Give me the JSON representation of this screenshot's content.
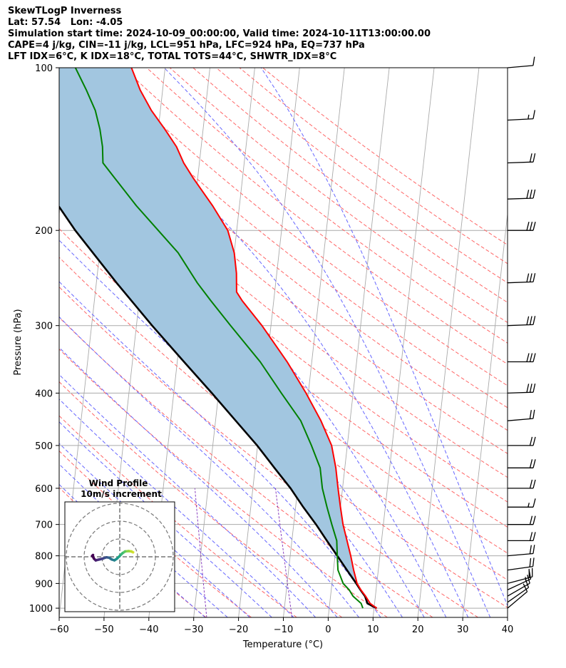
{
  "header": {
    "title": "SkewTLogP Inverness",
    "location": "Lat: 57.54   Lon: -4.05",
    "times": "Simulation start time: 2024-10-09_00:00:00, Valid time: 2024-10-11T13:00:00.00",
    "params1": "CAPE=4 j/kg, CIN=-11 j/kg, LCL=951 hPa, LFC=924 hPa, EQ=737 hPa",
    "params2": "LFT IDX=6$^\\circ$C, K IDX=18$^\\circ$C, TOTAL TOTS=44$^\\circ$C, SHWTR_IDX=8$^\\circ$C"
  },
  "colors": {
    "temperature": "#ff0000",
    "dewpoint": "#008000",
    "parcel": "#000000",
    "cape_fill": "#a2c6e0",
    "dry_adiabat": "#ff6666",
    "moist_adiabat": "#6666ff",
    "mixing_ratio": "#8a3fbf",
    "isotherm": "#aaaaaa"
  },
  "chart_data": {
    "type": "line",
    "title": "",
    "xlabel": "Temperature ($^\\circ$C)",
    "ylabel": "Pressure (hPa)",
    "xlim": [
      -60,
      40
    ],
    "ylim": [
      1040,
      100
    ],
    "y_scale": "log",
    "grid": true,
    "x_ticks": [
      "−60",
      "−50",
      "−40",
      "−30",
      "−20",
      "−10",
      "0",
      "10",
      "20",
      "30",
      "40"
    ],
    "x_tick_values": [
      -60,
      -50,
      -40,
      -30,
      -20,
      -10,
      0,
      10,
      20,
      30,
      40
    ],
    "y_ticks": [
      "1000",
      "900",
      "800",
      "700",
      "600",
      "500",
      "400",
      "300",
      "200",
      "100"
    ],
    "y_tick_values": [
      1000,
      900,
      800,
      700,
      600,
      500,
      400,
      300,
      200,
      100
    ],
    "series": [
      {
        "key": "temperature",
        "pressure": [
          1000,
          980,
          950,
          925,
          900,
          850,
          800,
          750,
          700,
          650,
          600,
          550,
          500,
          450,
          400,
          350,
          300,
          270,
          260,
          240,
          220,
          200,
          180,
          160,
          150,
          140,
          130,
          120,
          110,
          100
        ],
        "temp": [
          10.6,
          9.0,
          7.8,
          6.6,
          5.6,
          4.5,
          3.5,
          2.3,
          1.0,
          0.0,
          -1.0,
          -2.0,
          -3.5,
          -6.5,
          -10.5,
          -15.5,
          -22.0,
          -27.0,
          -28.5,
          -29.0,
          -30.0,
          -32.0,
          -36.0,
          -41.0,
          -43.5,
          -45.5,
          -48.5,
          -52.0,
          -55.0,
          -57.5
        ]
      },
      {
        "key": "dewpoint",
        "pressure": [
          1000,
          980,
          950,
          925,
          900,
          850,
          800,
          750,
          700,
          650,
          600,
          550,
          500,
          450,
          400,
          350,
          300,
          270,
          250,
          220,
          200,
          180,
          160,
          150,
          140,
          130,
          120,
          110,
          100
        ],
        "temp": [
          7.5,
          7.0,
          5.0,
          4.0,
          2.5,
          1.0,
          0.5,
          0.0,
          -1.5,
          -3.0,
          -4.5,
          -5.5,
          -8.0,
          -11.0,
          -16.0,
          -21.5,
          -29.0,
          -34.0,
          -37.5,
          -42.5,
          -47.5,
          -53.0,
          -58.5,
          -61.5,
          -62.0,
          -63.0,
          -64.5,
          -67.0,
          -70.0
        ]
      },
      {
        "key": "parcel",
        "pressure": [
          1000,
          980,
          951,
          940,
          925,
          900,
          850,
          800,
          750,
          700,
          650,
          600,
          550,
          500,
          450,
          400,
          350,
          300,
          250,
          200,
          150,
          125,
          100
        ],
        "temp": [
          10.6,
          8.4,
          7.7,
          7.2,
          6.5,
          5.4,
          3.0,
          0.5,
          -2.2,
          -5.0,
          -8.3,
          -11.6,
          -15.7,
          -20.1,
          -25.5,
          -31.5,
          -38.5,
          -46.5,
          -55.5,
          -66.0,
          -78.0,
          -84.0,
          -89.0
        ]
      }
    ],
    "wind_barbs_pressure": [
      1000,
      975,
      950,
      925,
      900,
      850,
      800,
      750,
      700,
      650,
      600,
      550,
      500,
      450,
      400,
      350,
      300,
      250,
      200,
      175,
      150,
      125,
      100
    ],
    "wind_barbs_direction": [
      230,
      235,
      240,
      245,
      255,
      262,
      265,
      270,
      270,
      270,
      270,
      270,
      270,
      265,
      268,
      270,
      268,
      268,
      270,
      268,
      268,
      267,
      265
    ],
    "wind_barbs_speed": [
      10,
      10,
      10,
      15,
      20,
      20,
      20,
      20,
      20,
      15,
      20,
      20,
      20,
      20,
      30,
      30,
      30,
      30,
      30,
      30,
      20,
      15,
      10
    ],
    "hodograph": {
      "title": "Wind Profile",
      "subtitle": "10m/s increment",
      "u": [
        7.5,
        6.5,
        5.0,
        3.0,
        1.5,
        0.0,
        -1.5,
        -3.0,
        -4.5,
        -6.0,
        -7.5,
        -9.5,
        -11.5,
        -13.5,
        -14.5,
        -15.0,
        -15.5,
        -15.0
      ],
      "v": [
        2.5,
        3.0,
        3.2,
        3.0,
        2.0,
        0.5,
        -1.0,
        -2.0,
        -1.5,
        -0.5,
        -0.3,
        -1.0,
        -1.5,
        -2.0,
        -1.0,
        0.0,
        0.5,
        1.0
      ],
      "colors": [
        "#d6e030",
        "#c0de2c",
        "#8fd744",
        "#5ec962",
        "#3aba76",
        "#21a685",
        "#1f948c",
        "#25838e",
        "#2c728e",
        "#33628d",
        "#3b528b",
        "#424086",
        "#472d7b",
        "#481a6c",
        "#440154",
        "#440154",
        "#440154",
        "#440154"
      ]
    }
  }
}
